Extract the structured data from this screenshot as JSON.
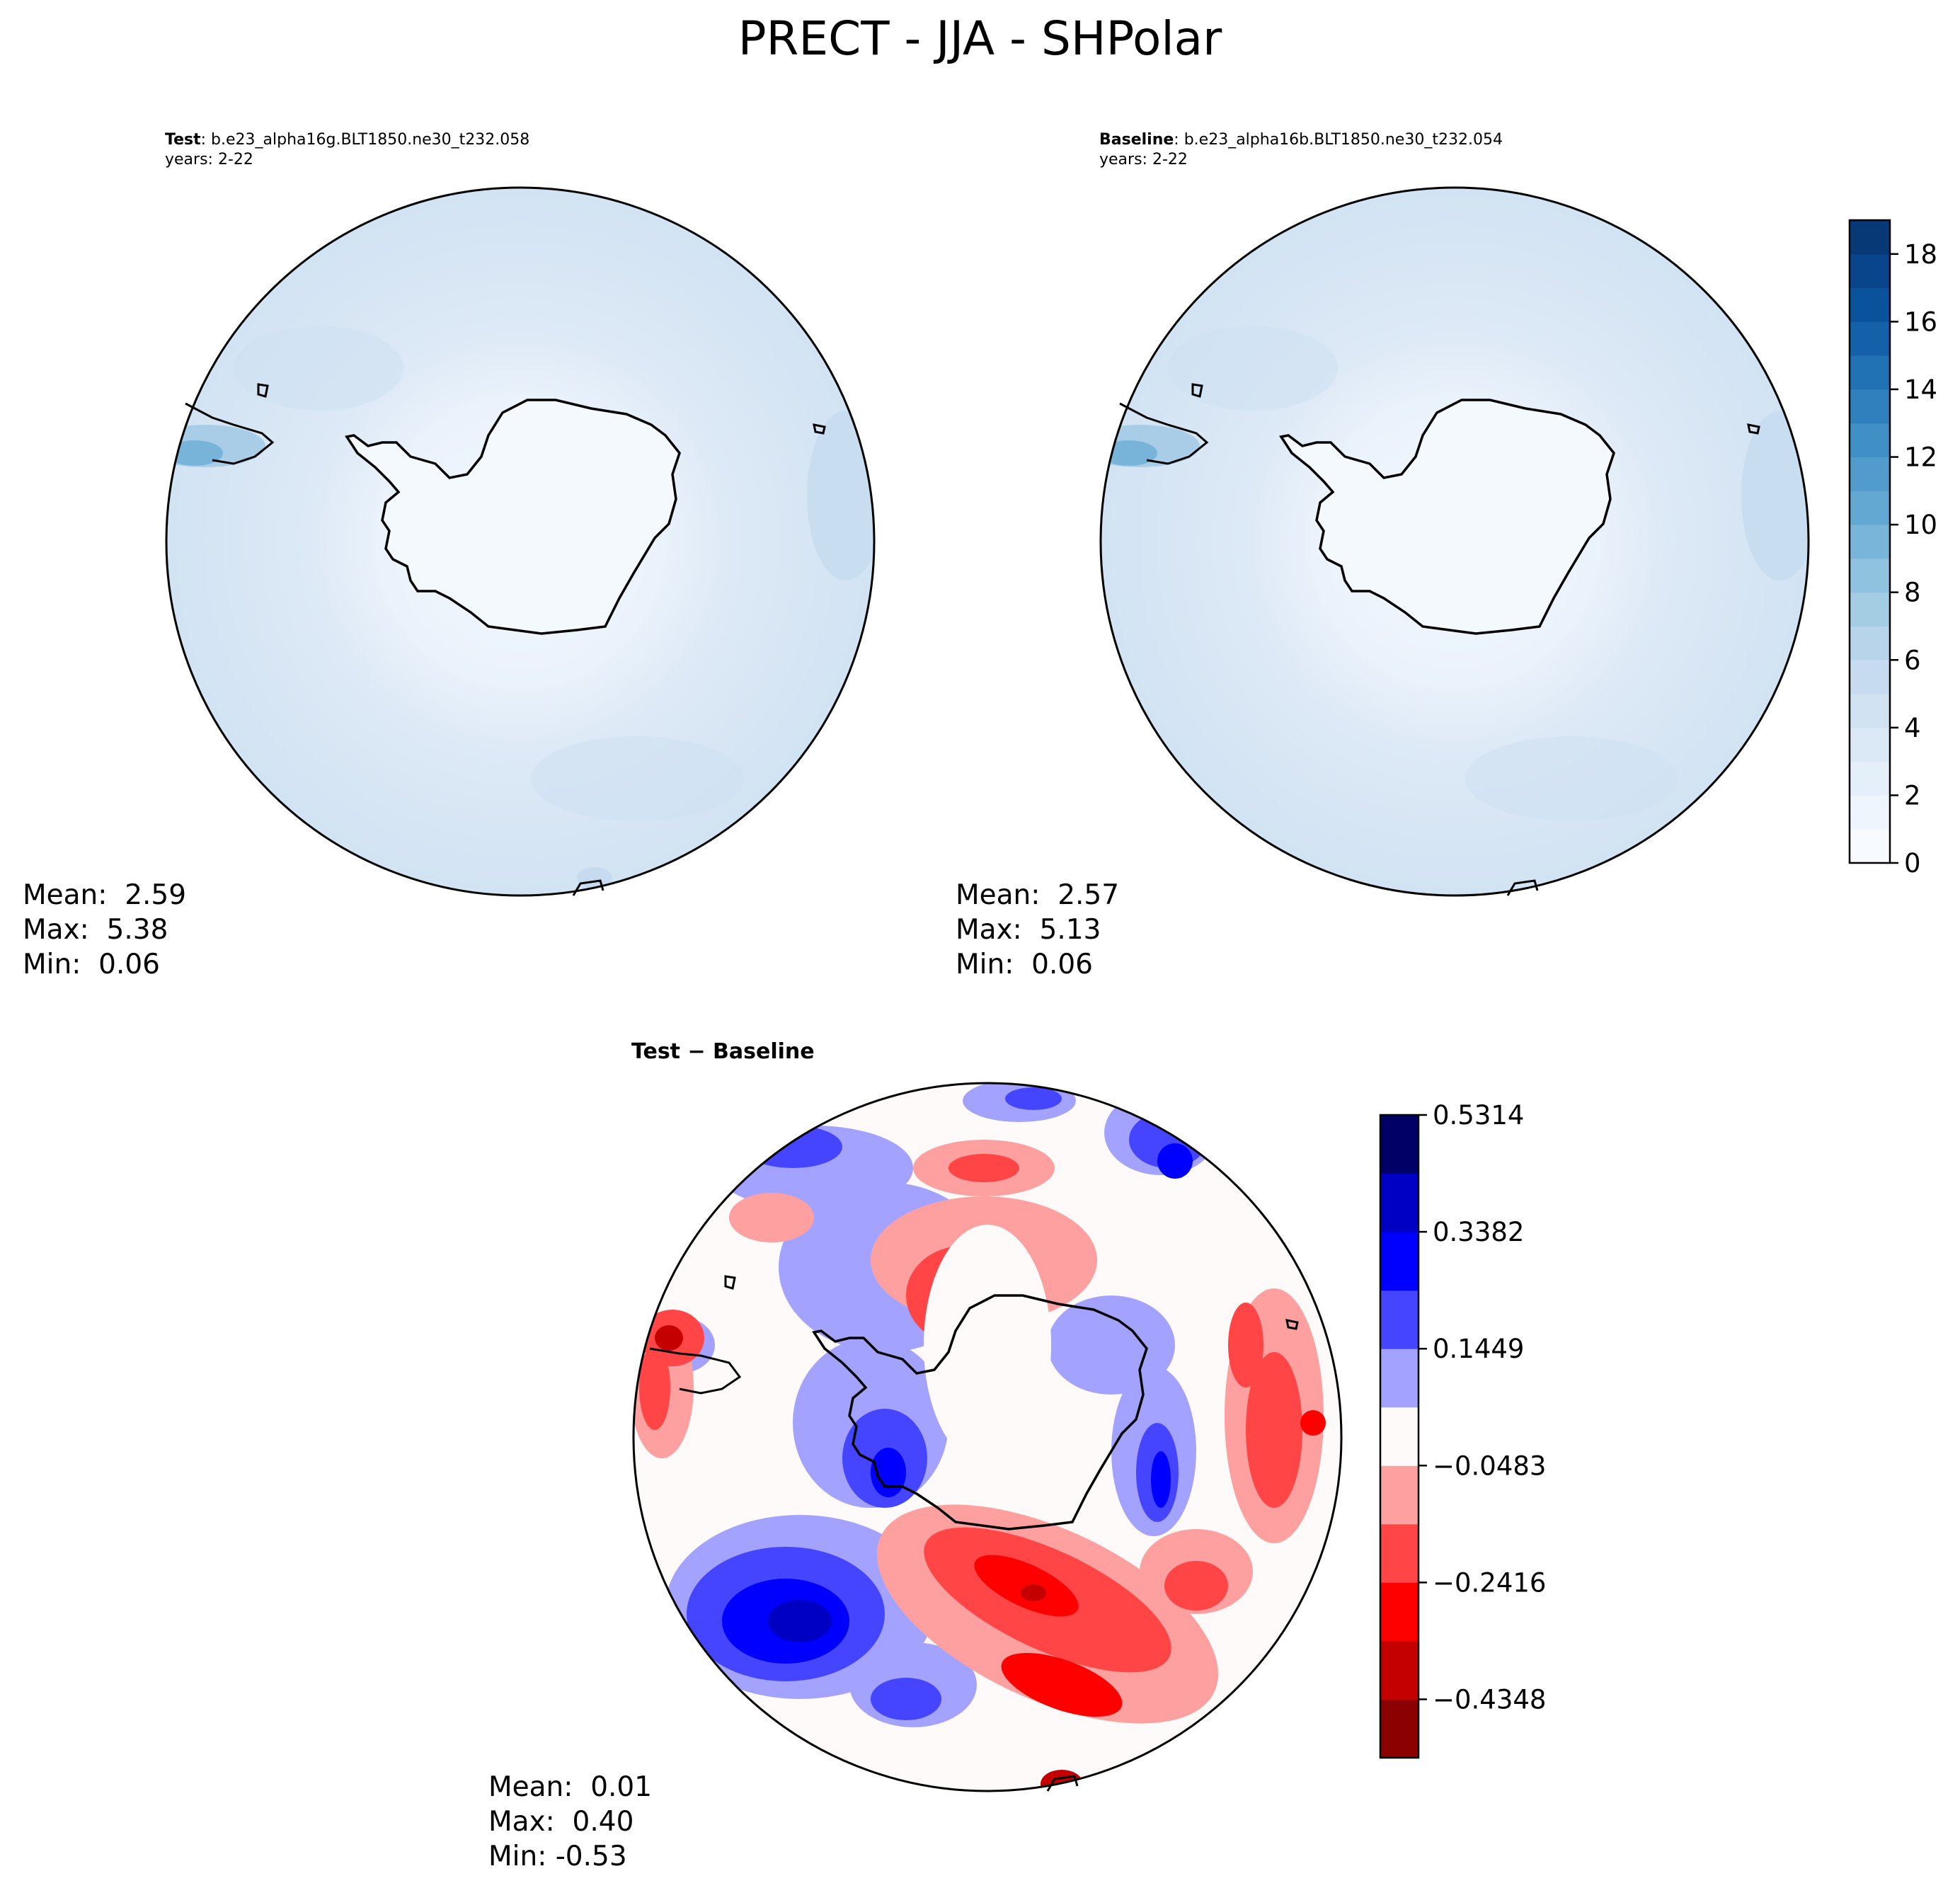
{
  "suptitle": "PRECT - JJA - SHPolar",
  "panels": {
    "test": {
      "label": "Test",
      "case": "b.e23_alpha16g.BLT1850.ne30_t232.058",
      "years": "years: 2-22",
      "stats": {
        "mean": "Mean:  2.59",
        "max": "Max:  5.38",
        "min": "Min:  0.06"
      }
    },
    "baseline": {
      "label": "Baseline",
      "case": "b.e23_alpha16b.BLT1850.ne30_t232.054",
      "years": "years: 2-22",
      "stats": {
        "mean": "Mean:  2.57",
        "max": "Max:  5.13",
        "min": "Min:  0.06"
      }
    },
    "diff": {
      "title": "Test − Baseline",
      "stats": {
        "mean": "Mean:  0.01",
        "max": "Max:  0.40",
        "min": "Min: -0.53"
      }
    }
  },
  "chart_data": [
    {
      "type": "heatmap",
      "title": "Test: b.e23_alpha16g.BLT1850.ne30_t232.058",
      "projection": "south polar stereographic",
      "colormap": "Blues",
      "vmin": 0,
      "vmax": 19,
      "mean": 2.59,
      "max": 5.38,
      "min": 0.06
    },
    {
      "type": "heatmap",
      "title": "Baseline: b.e23_alpha16b.BLT1850.ne30_t232.054",
      "projection": "south polar stereographic",
      "colormap": "Blues",
      "vmin": 0,
      "vmax": 19,
      "mean": 2.57,
      "max": 5.13,
      "min": 0.06
    },
    {
      "type": "heatmap",
      "title": "Test − Baseline",
      "projection": "south polar stereographic",
      "colormap": "bwr",
      "vmin": -0.5314,
      "vmax": 0.5314,
      "mean": 0.01,
      "max": 0.4,
      "min": -0.53
    }
  ],
  "colorbars": {
    "main": {
      "ticks": [
        "0",
        "2",
        "4",
        "6",
        "8",
        "10",
        "12",
        "14",
        "16",
        "18"
      ],
      "tick_values": [
        0,
        2,
        4,
        6,
        8,
        10,
        12,
        14,
        16,
        18
      ],
      "range": [
        0,
        19
      ],
      "colors": [
        "#f7fbff",
        "#eef5fc",
        "#e4eff9",
        "#dbe9f6",
        "#d1e3f3",
        "#c6dbef",
        "#b7d4ea",
        "#a4cce3",
        "#8fc2de",
        "#78b5d9",
        "#62a8d3",
        "#519ccc",
        "#4090c5",
        "#3080bd",
        "#2171b5",
        "#1561a9",
        "#0b529c",
        "#08458a",
        "#083977"
      ]
    },
    "diff": {
      "ticks": [
        "0.5314",
        "0.3382",
        "0.1449",
        "−0.0483",
        "−0.2416",
        "−0.4348"
      ],
      "tick_values": [
        0.5314,
        0.3382,
        0.1449,
        -0.0483,
        -0.2416,
        -0.4348
      ],
      "range": [
        -0.5314,
        0.5314
      ],
      "colors": [
        "#8b0000",
        "#c40000",
        "#ff0000",
        "#ff4545",
        "#ffa0a0",
        "#fffafa",
        "#a3a3ff",
        "#4545ff",
        "#0000ff",
        "#0000c4",
        "#000066"
      ]
    }
  }
}
